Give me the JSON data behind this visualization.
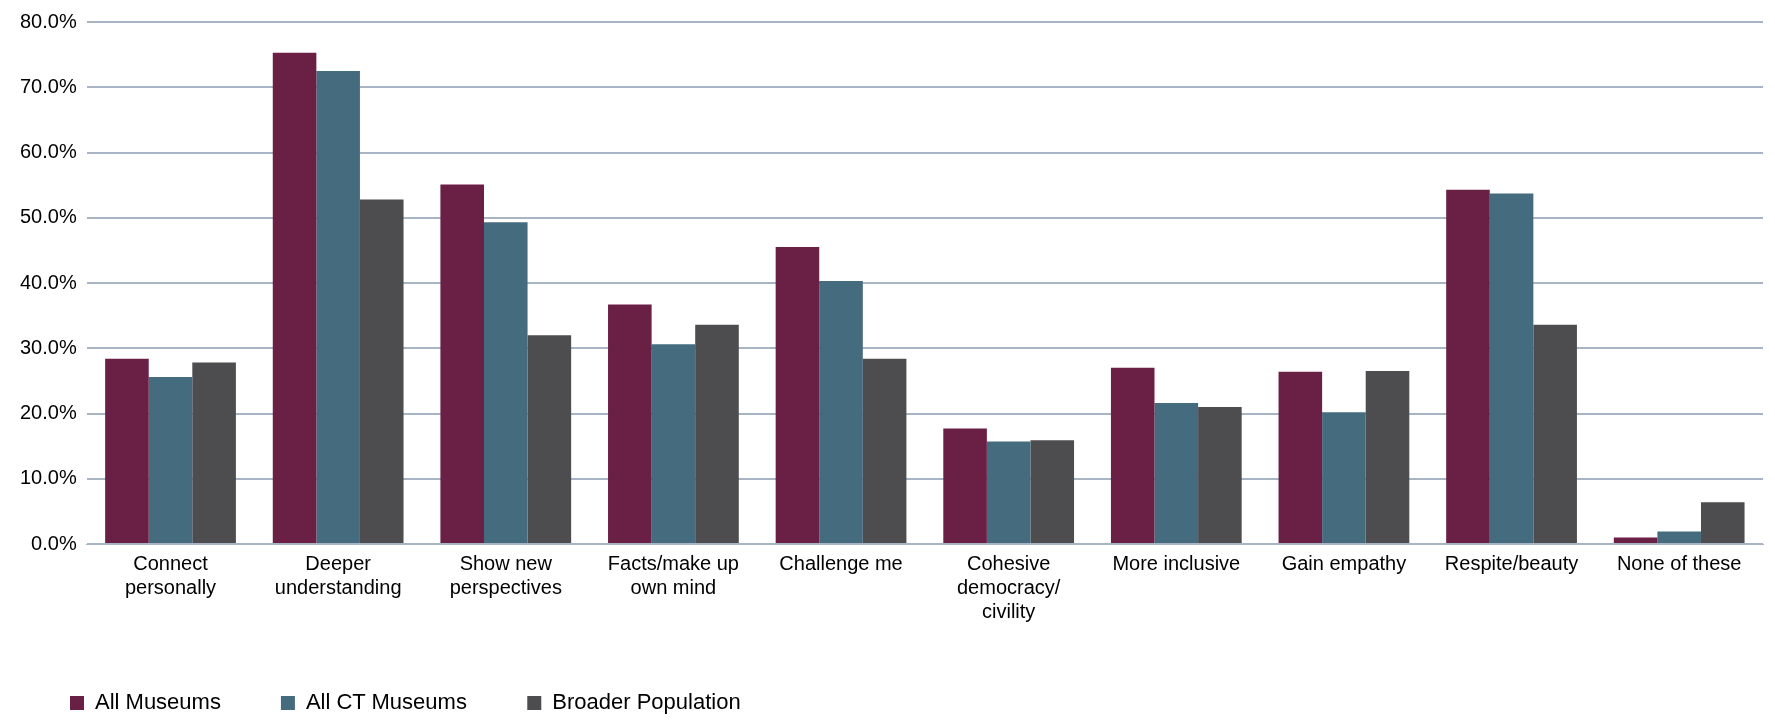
{
  "chart_data": {
    "type": "bar",
    "categories": [
      "Connect personally",
      "Deeper understanding",
      "Show new perspectives",
      "Facts/make up own mind",
      "Challenge me",
      "Cohesive democracy/ civility",
      "More inclusive",
      "Gain empathy",
      "Respite/beauty",
      "None of these"
    ],
    "series": [
      {
        "name": "All Museums",
        "color": "#6a1f45",
        "values": [
          28.4,
          75.3,
          55.1,
          36.7,
          45.5,
          17.7,
          27.0,
          26.4,
          54.3,
          1.0
        ]
      },
      {
        "name": "All CT Museums",
        "color": "#456c7e",
        "values": [
          25.6,
          72.5,
          49.3,
          30.6,
          40.3,
          15.7,
          21.6,
          20.2,
          53.7,
          1.9
        ]
      },
      {
        "name": "Broader Population",
        "color": "#4d4d50",
        "values": [
          27.8,
          52.8,
          32.0,
          33.6,
          28.4,
          15.9,
          21.0,
          26.5,
          33.6,
          6.4
        ]
      }
    ],
    "ylim": [
      0,
      80
    ],
    "yticks": [
      {
        "value": 0,
        "label": "0.0%"
      },
      {
        "value": 10,
        "label": "10.0%"
      },
      {
        "value": 20,
        "label": "20.0%"
      },
      {
        "value": 30,
        "label": "30.0%"
      },
      {
        "value": 40,
        "label": "40.0%"
      },
      {
        "value": 50,
        "label": "50.0%"
      },
      {
        "value": 60,
        "label": "60.0%"
      },
      {
        "value": 70,
        "label": "70.0%"
      },
      {
        "value": 80,
        "label": "80.0%"
      }
    ],
    "grid": "y",
    "legend": "bottom left"
  }
}
